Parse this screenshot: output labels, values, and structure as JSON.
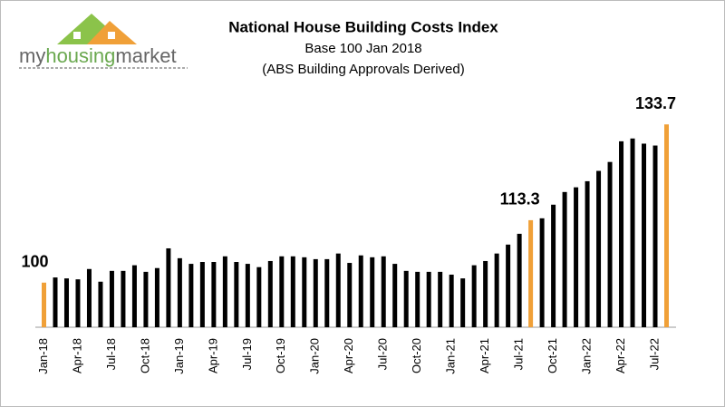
{
  "logo": {
    "parts": [
      "my",
      "housing",
      "market"
    ]
  },
  "chart_data": {
    "type": "bar",
    "title": "National House Building Costs Index",
    "subtitle": "Base 100 Jan 2018",
    "subtitle2": "(ABS Building Approvals Derived)",
    "categories": [
      "Jan-18",
      null,
      null,
      "Apr-18",
      null,
      null,
      "Jul-18",
      null,
      null,
      "Oct-18",
      null,
      null,
      "Jan-19",
      null,
      null,
      "Apr-19",
      null,
      null,
      "Jul-19",
      null,
      null,
      "Oct-19",
      null,
      null,
      "Jan-20",
      null,
      null,
      "Apr-20",
      null,
      null,
      "Jul-20",
      null,
      null,
      "Oct-20",
      null,
      null,
      "Jan-21",
      null,
      null,
      "Apr-21",
      null,
      null,
      "Jul-21",
      null,
      null,
      "Oct-21",
      null,
      null,
      "Jan-22",
      null,
      null,
      "Apr-22",
      null,
      null,
      "Jul-22",
      null
    ],
    "values": [
      100,
      101.1,
      100.9,
      100.7,
      102.9,
      100.2,
      102.5,
      102.5,
      103.7,
      102.3,
      103.1,
      107.3,
      105.2,
      104.0,
      104.4,
      104.4,
      105.6,
      104.4,
      104.0,
      103.3,
      104.6,
      105.6,
      105.6,
      105.4,
      105.0,
      105.0,
      106.2,
      104.2,
      105.8,
      105.4,
      105.6,
      104.0,
      102.5,
      102.3,
      102.3,
      102.3,
      101.7,
      100.9,
      103.7,
      104.6,
      106.2,
      108.1,
      110.4,
      113.3,
      113.7,
      116.6,
      119.3,
      120.3,
      121.6,
      123.8,
      125.7,
      130.1,
      130.7,
      129.6,
      129.2,
      133.7
    ],
    "value_labels": [
      "100",
      null,
      null,
      null,
      null,
      null,
      null,
      null,
      null,
      null,
      null,
      null,
      null,
      null,
      null,
      null,
      null,
      null,
      null,
      null,
      null,
      null,
      null,
      null,
      null,
      null,
      null,
      null,
      null,
      null,
      null,
      null,
      null,
      null,
      null,
      null,
      null,
      null,
      null,
      null,
      null,
      null,
      null,
      "113.3",
      null,
      null,
      null,
      null,
      null,
      null,
      null,
      null,
      null,
      null,
      null,
      "133.7"
    ],
    "color": "#000000",
    "highlight_color": "#f0a038",
    "ylim": [
      90.5,
      135
    ]
  }
}
